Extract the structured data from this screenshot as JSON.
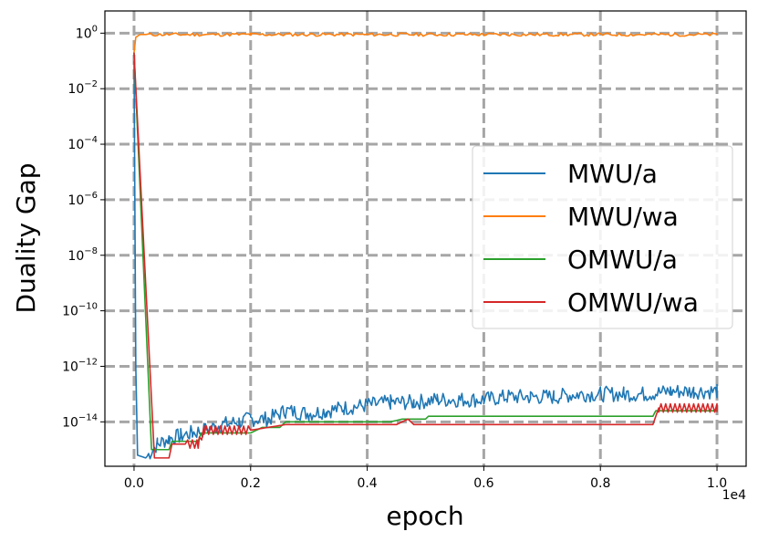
{
  "chart_data": {
    "type": "line",
    "xlabel": "epoch",
    "ylabel": "Duality Gap",
    "x_offset_label": "1e4",
    "x_ticks": [
      0.0,
      0.2,
      0.4,
      0.6,
      0.8,
      1.0
    ],
    "x_tick_labels": [
      "0.0",
      "0.2",
      "0.4",
      "0.6",
      "0.8",
      "1.0"
    ],
    "xlim": [
      -0.05,
      1.05
    ],
    "y_scale": "log",
    "y_tick_exponents": [
      0,
      -2,
      -4,
      -6,
      -8,
      -10,
      -12,
      -14
    ],
    "ylim_exponent": [
      -15.6,
      0.8
    ],
    "grid": true,
    "legend_position": "center-right",
    "series": [
      {
        "name": "MWU/a",
        "color": "#1f77b4",
        "points": [
          [
            0.0,
            -1.0
          ],
          [
            0.003,
            -12.0
          ],
          [
            0.006,
            -15.2
          ],
          [
            0.02,
            -15.3
          ],
          [
            0.04,
            -14.8
          ],
          [
            0.06,
            -14.6
          ],
          [
            0.08,
            -14.5
          ],
          [
            0.1,
            -14.4
          ],
          [
            0.12,
            -14.3
          ],
          [
            0.15,
            -14.1
          ],
          [
            0.18,
            -14.0
          ],
          [
            0.2,
            -13.9
          ],
          [
            0.23,
            -13.9
          ],
          [
            0.26,
            -13.6
          ],
          [
            0.3,
            -13.7
          ],
          [
            0.33,
            -13.6
          ],
          [
            0.36,
            -13.5
          ],
          [
            0.4,
            -13.4
          ],
          [
            0.44,
            -13.3
          ],
          [
            0.48,
            -13.3
          ],
          [
            0.52,
            -13.2
          ],
          [
            0.56,
            -13.2
          ],
          [
            0.6,
            -13.2
          ],
          [
            0.64,
            -13.1
          ],
          [
            0.68,
            -13.1
          ],
          [
            0.72,
            -13.1
          ],
          [
            0.76,
            -13.0
          ],
          [
            0.8,
            -13.0
          ],
          [
            0.84,
            -13.0
          ],
          [
            0.88,
            -13.0
          ],
          [
            0.92,
            -12.9
          ],
          [
            0.96,
            -12.9
          ],
          [
            1.0,
            -12.9
          ]
        ]
      },
      {
        "name": "MWU/wa",
        "color": "#ff7f0e",
        "points": [
          [
            0.0,
            -0.7
          ],
          [
            0.003,
            -0.15
          ],
          [
            0.01,
            -0.05
          ],
          [
            0.2,
            -0.05
          ],
          [
            0.4,
            -0.05
          ],
          [
            0.6,
            -0.05
          ],
          [
            0.8,
            -0.05
          ],
          [
            1.0,
            -0.05
          ]
        ]
      },
      {
        "name": "OMWU/a",
        "color": "#2ca02c",
        "points": [
          [
            0.0,
            -0.7
          ],
          [
            0.03,
            -15.0
          ],
          [
            0.06,
            -15.0
          ],
          [
            0.065,
            -14.7
          ],
          [
            0.11,
            -14.7
          ],
          [
            0.115,
            -14.4
          ],
          [
            0.2,
            -14.4
          ],
          [
            0.22,
            -14.2
          ],
          [
            0.25,
            -14.2
          ],
          [
            0.26,
            -14.0
          ],
          [
            0.44,
            -14.0
          ],
          [
            0.46,
            -13.9
          ],
          [
            0.5,
            -13.9
          ],
          [
            0.505,
            -13.8
          ],
          [
            0.89,
            -13.8
          ],
          [
            0.895,
            -13.6
          ],
          [
            1.0,
            -13.6
          ]
        ]
      },
      {
        "name": "OMWU/wa",
        "color": "#d62728",
        "points": [
          [
            0.0,
            -0.7
          ],
          [
            0.035,
            -15.3
          ],
          [
            0.06,
            -15.3
          ],
          [
            0.065,
            -14.8
          ],
          [
            0.11,
            -14.8
          ],
          [
            0.12,
            -14.3
          ],
          [
            0.2,
            -14.3
          ],
          [
            0.26,
            -14.1
          ],
          [
            0.45,
            -14.1
          ],
          [
            0.47,
            -13.9
          ],
          [
            0.48,
            -14.1
          ],
          [
            0.89,
            -14.1
          ],
          [
            0.9,
            -13.5
          ],
          [
            1.0,
            -13.5
          ]
        ]
      }
    ]
  }
}
